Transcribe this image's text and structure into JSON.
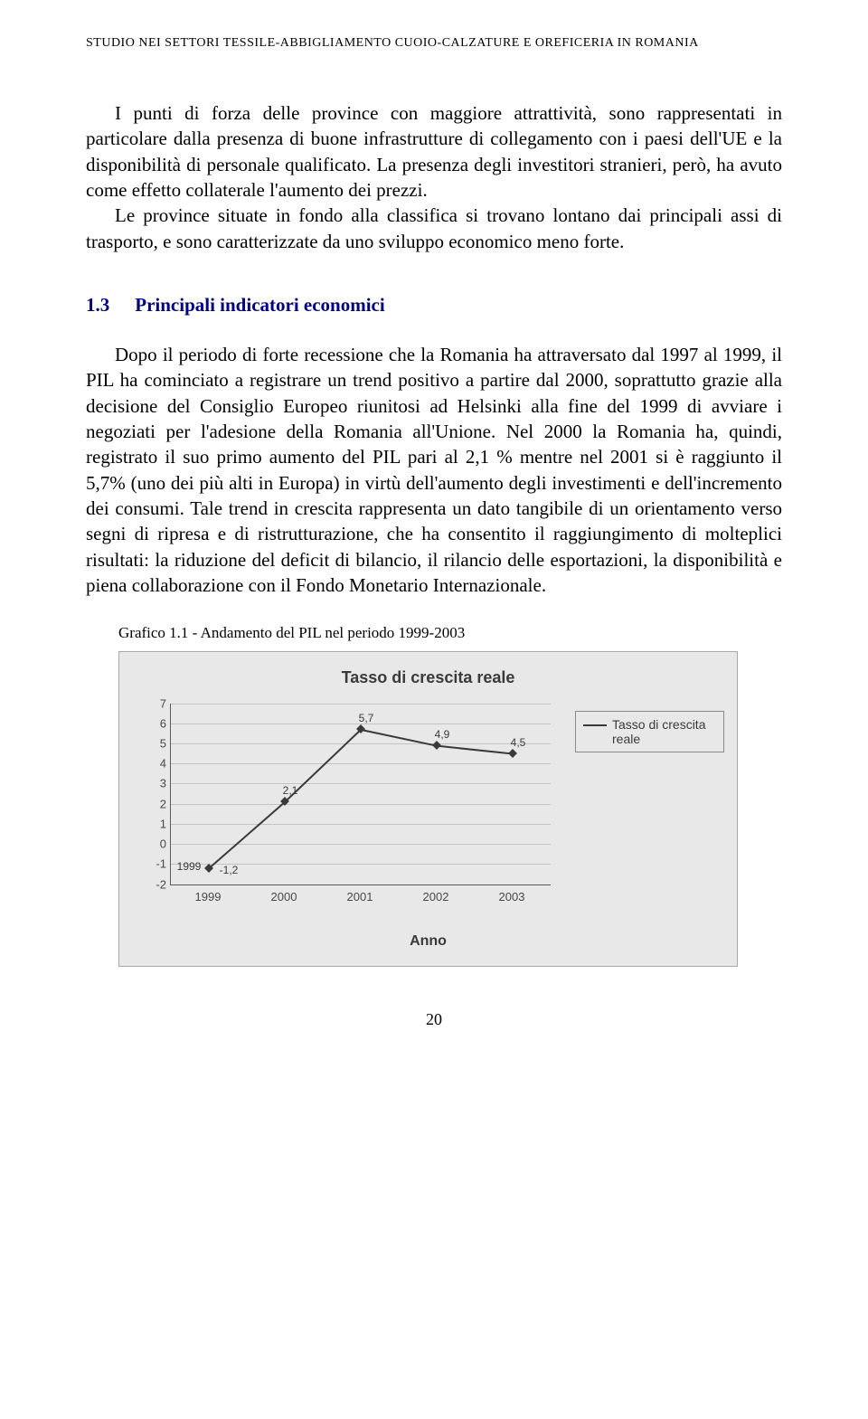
{
  "header": {
    "running_title": "STUDIO NEI SETTORI TESSILE-ABBIGLIAMENTO CUOIO-CALZATURE E OREFICERIA IN ROMANIA"
  },
  "paragraphs": {
    "p1": "I punti di forza delle province con maggiore attrattività, sono rappresentati in particolare dalla presenza di buone infrastrutture di collegamento con i paesi dell'UE e la disponibilità di personale qualificato. La presenza degli investitori stranieri, però, ha avuto come effetto collaterale l'aumento dei prezzi.",
    "p1b": "Le province situate in fondo alla classifica si trovano lontano dai principali assi di trasporto, e sono caratterizzate da uno sviluppo economico meno forte.",
    "p2": "Dopo il periodo di forte recessione che la Romania ha attraversato dal 1997 al 1999, il PIL ha cominciato a registrare un trend positivo a partire dal 2000, soprattutto grazie alla decisione del Consiglio Europeo riunitosi ad Helsinki alla fine del 1999 di avviare i negoziati per l'adesione della Romania all'Unione. Nel 2000 la Romania ha, quindi, registrato il suo primo aumento del PIL pari al 2,1 % mentre nel 2001 si è raggiunto il 5,7% (uno dei più alti in Europa) in virtù dell'aumento degli investimenti e dell'incremento dei consumi. Tale trend in crescita rappresenta un dato tangibile di un orientamento verso segni di ripresa e di ristrutturazione, che ha consentito il raggiungimento di molteplici risultati: la riduzione del deficit di bilancio, il rilancio delle esportazioni, la disponibilità e piena collaborazione con il Fondo Monetario Internazionale."
  },
  "section": {
    "number": "1.3",
    "title": "Principali indicatori economici",
    "color": "#000080"
  },
  "figure": {
    "caption": "Grafico  1.1 - Andamento del PIL nel periodo 1999-2003"
  },
  "chart": {
    "type": "line",
    "title": "Tasso di crescita reale",
    "xlabel": "Anno",
    "legend_label": "Tasso di crescita reale",
    "background_color": "#e8e8e8",
    "grid_color": "#c4c4c4",
    "axis_color": "#5a5a5a",
    "line_color": "#3a3a3a",
    "line_width": 2,
    "marker_style": "diamond",
    "font_family": "Arial",
    "title_fontsize": 18,
    "label_fontsize": 16,
    "tick_fontsize": 13,
    "ylim": [
      -2,
      7
    ],
    "ytick_step": 1,
    "yticks": [
      -2,
      -1,
      0,
      1,
      2,
      3,
      4,
      5,
      6,
      7
    ],
    "categories": [
      "1999",
      "2000",
      "2001",
      "2002",
      "2003"
    ],
    "values": [
      -1.2,
      2.1,
      5.7,
      4.9,
      4.5
    ],
    "value_labels": [
      "-1,2",
      "2,1",
      "5,7",
      "4,9",
      "4,5"
    ],
    "show_first_label_as_year": "1999"
  },
  "page_number": "20"
}
